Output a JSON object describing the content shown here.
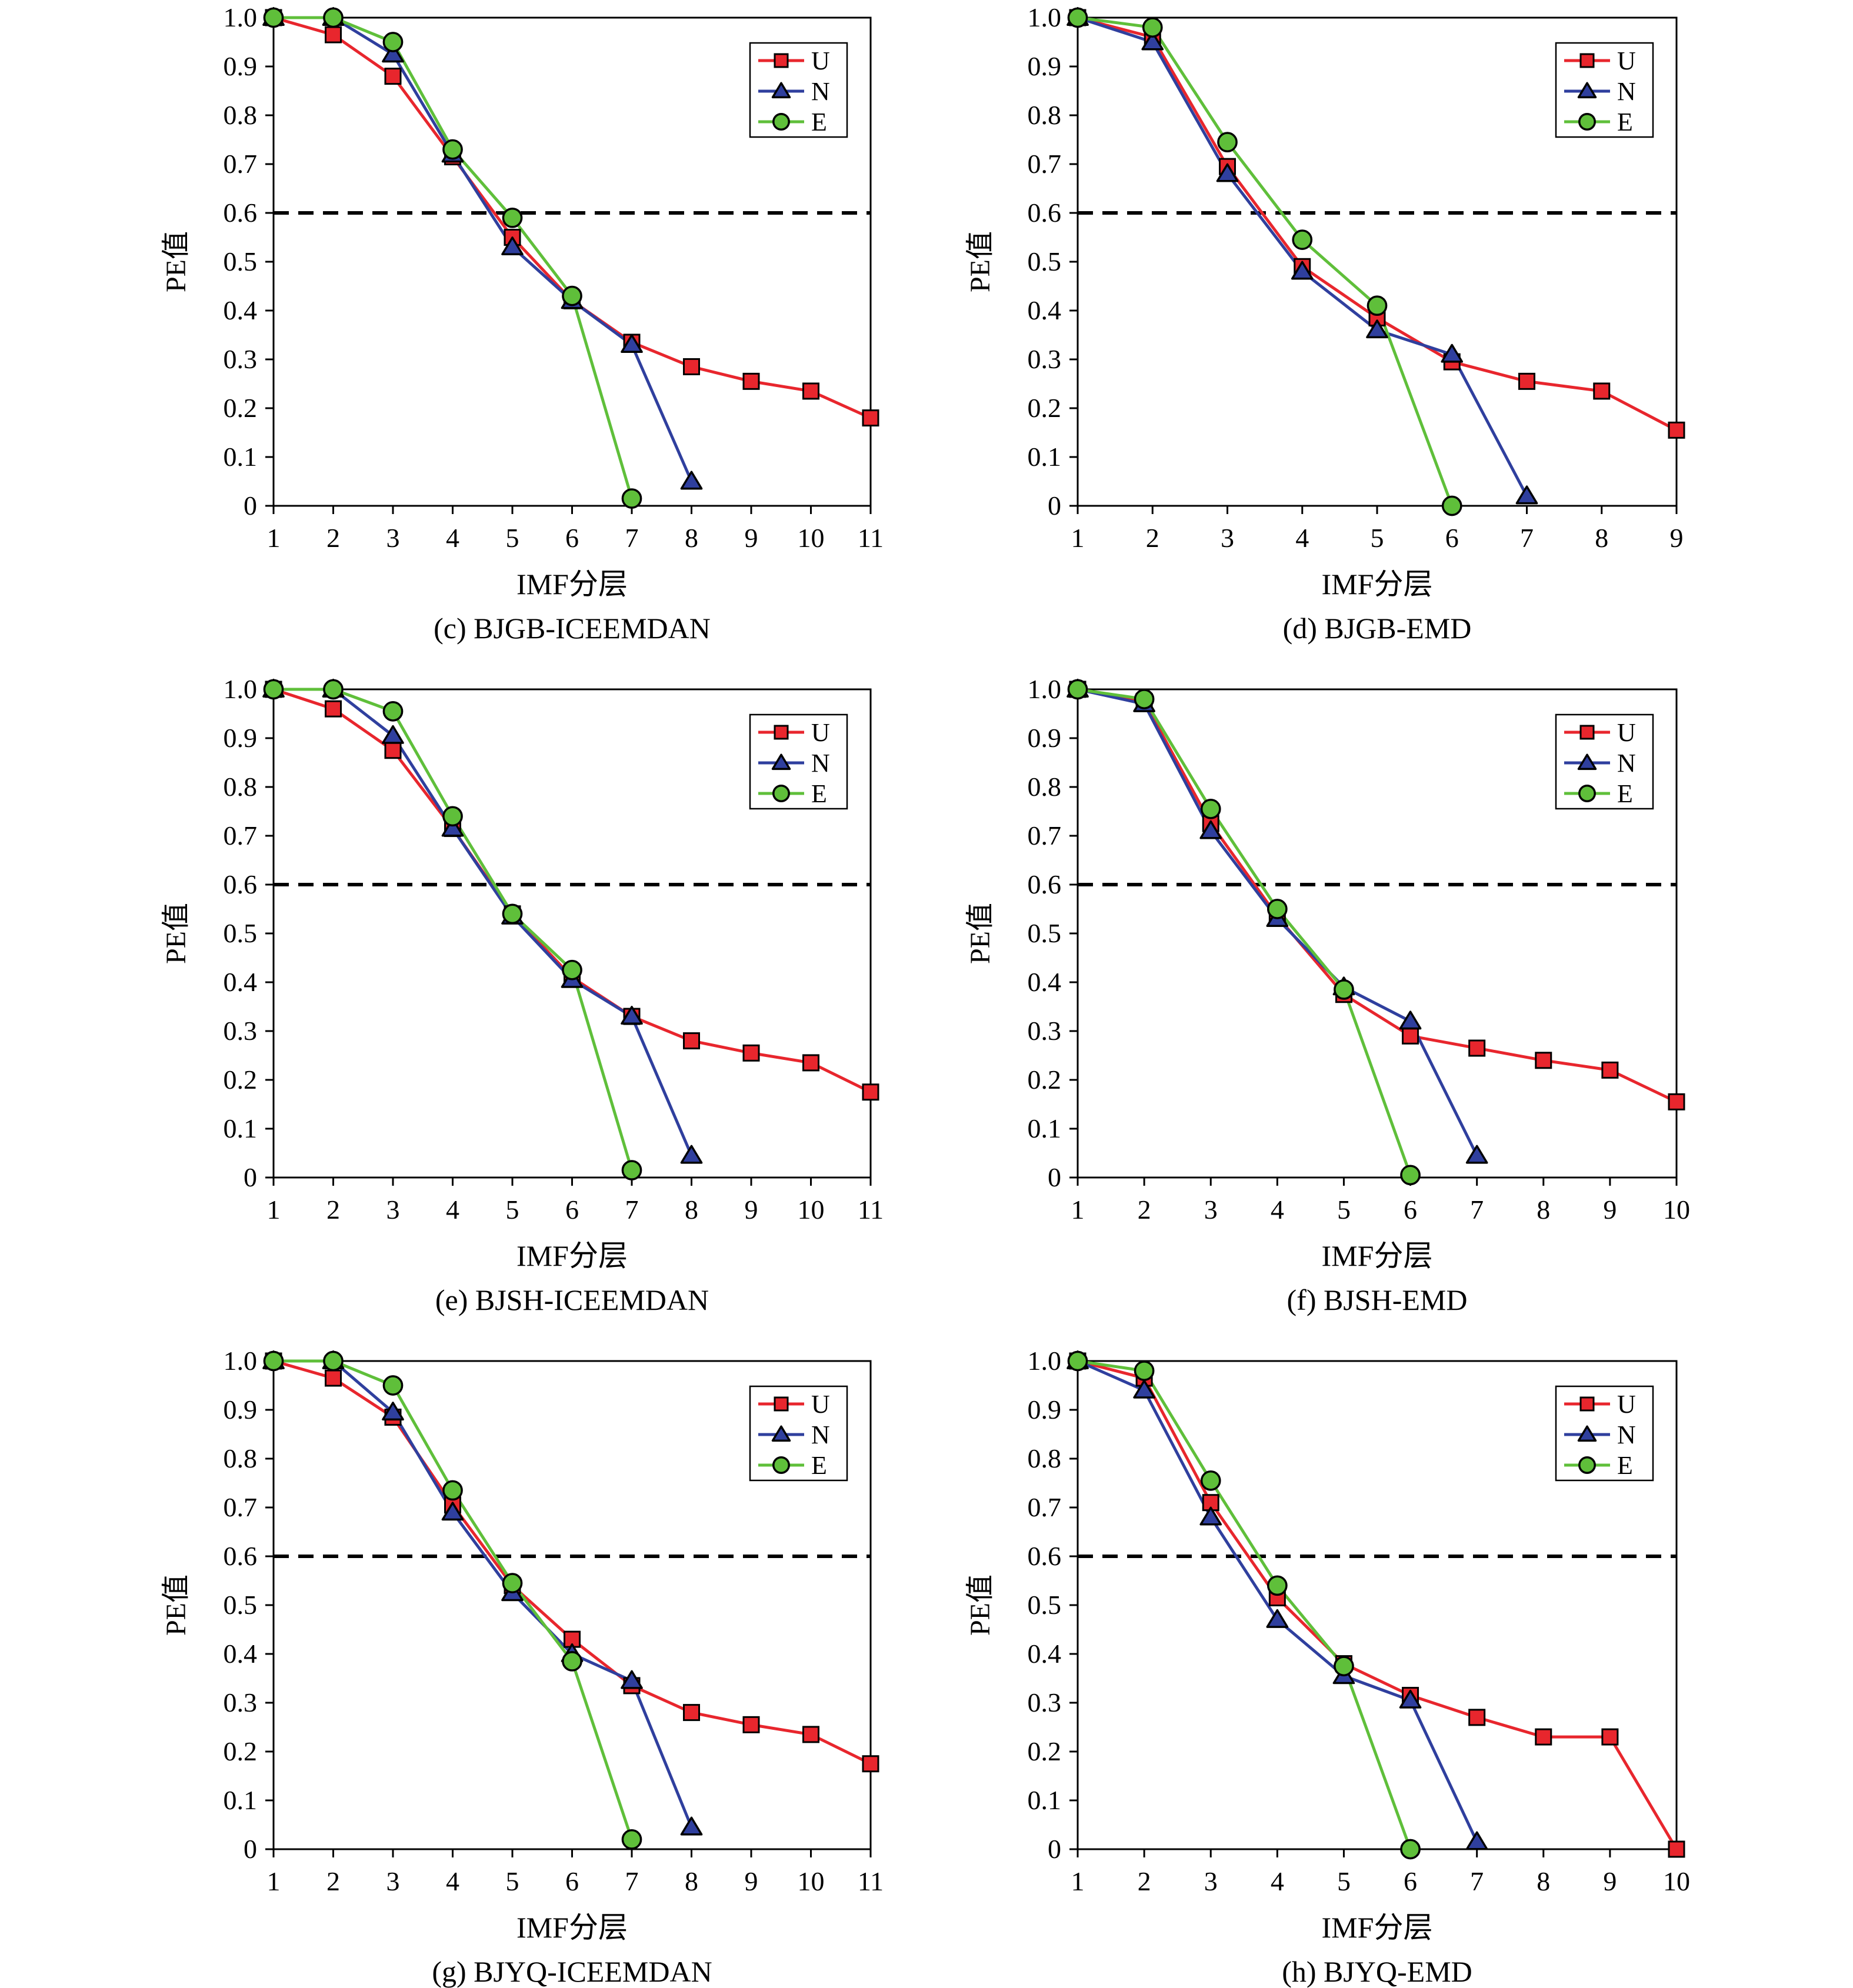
{
  "chart_data": [
    {
      "type": "line",
      "caption": "(c) BJGB-ICEEMDAN",
      "xlabel": "IMF分层",
      "ylabel": "PE值",
      "x_ticks": [
        "1",
        "2",
        "3",
        "4",
        "5",
        "6",
        "7",
        "8",
        "9",
        "10",
        "11"
      ],
      "y_ticks": [
        "0",
        "0.1",
        "0.2",
        "0.3",
        "0.4",
        "0.5",
        "0.6",
        "0.7",
        "0.8",
        "0.9",
        "1.0"
      ],
      "xlim": [
        1,
        11
      ],
      "ylim": [
        0,
        1
      ],
      "threshold": 0.6,
      "grid": false,
      "legend_position": "top-right",
      "series": [
        {
          "name": "U",
          "color": "#e8262d",
          "marker": "square",
          "points": [
            [
              1,
              1.0
            ],
            [
              2,
              0.965
            ],
            [
              3,
              0.88
            ],
            [
              4,
              0.715
            ],
            [
              5,
              0.55
            ],
            [
              6,
              0.42
            ],
            [
              7,
              0.335
            ],
            [
              8,
              0.285
            ],
            [
              9,
              0.255
            ],
            [
              10,
              0.235
            ],
            [
              11,
              0.18
            ]
          ]
        },
        {
          "name": "N",
          "color": "#2f3f9e",
          "marker": "triangle",
          "points": [
            [
              1,
              1.0
            ],
            [
              2,
              1.0
            ],
            [
              3,
              0.925
            ],
            [
              4,
              0.72
            ],
            [
              5,
              0.53
            ],
            [
              6,
              0.42
            ],
            [
              7,
              0.33
            ],
            [
              8,
              0.05
            ]
          ]
        },
        {
          "name": "E",
          "color": "#5fbf3a",
          "marker": "circle",
          "points": [
            [
              1,
              1.0
            ],
            [
              2,
              1.0
            ],
            [
              3,
              0.95
            ],
            [
              4,
              0.73
            ],
            [
              5,
              0.59
            ],
            [
              6,
              0.43
            ],
            [
              7,
              0.015
            ]
          ]
        }
      ]
    },
    {
      "type": "line",
      "caption": "(d) BJGB-EMD",
      "xlabel": "IMF分层",
      "ylabel": "PE值",
      "x_ticks": [
        "1",
        "2",
        "3",
        "4",
        "5",
        "6",
        "7",
        "8",
        "9"
      ],
      "y_ticks": [
        "0",
        "0.1",
        "0.2",
        "0.3",
        "0.4",
        "0.5",
        "0.6",
        "0.7",
        "0.8",
        "0.9",
        "1.0"
      ],
      "xlim": [
        1,
        9
      ],
      "ylim": [
        0,
        1
      ],
      "threshold": 0.6,
      "grid": false,
      "legend_position": "top-right",
      "series": [
        {
          "name": "U",
          "color": "#e8262d",
          "marker": "square",
          "points": [
            [
              1,
              1.0
            ],
            [
              2,
              0.96
            ],
            [
              3,
              0.695
            ],
            [
              4,
              0.49
            ],
            [
              5,
              0.385
            ],
            [
              6,
              0.295
            ],
            [
              7,
              0.255
            ],
            [
              8,
              0.235
            ],
            [
              9,
              0.155
            ]
          ]
        },
        {
          "name": "N",
          "color": "#2f3f9e",
          "marker": "triangle",
          "points": [
            [
              1,
              1.0
            ],
            [
              2,
              0.95
            ],
            [
              3,
              0.68
            ],
            [
              4,
              0.48
            ],
            [
              5,
              0.36
            ],
            [
              6,
              0.31
            ],
            [
              7,
              0.02
            ]
          ]
        },
        {
          "name": "E",
          "color": "#5fbf3a",
          "marker": "circle",
          "points": [
            [
              1,
              1.0
            ],
            [
              2,
              0.98
            ],
            [
              3,
              0.745
            ],
            [
              4,
              0.545
            ],
            [
              5,
              0.41
            ],
            [
              6,
              0.0
            ]
          ]
        }
      ]
    },
    {
      "type": "line",
      "caption": "(e) BJSH-ICEEMDAN",
      "xlabel": "IMF分层",
      "ylabel": "PE值",
      "x_ticks": [
        "1",
        "2",
        "3",
        "4",
        "5",
        "6",
        "7",
        "8",
        "9",
        "10",
        "11"
      ],
      "y_ticks": [
        "0",
        "0.1",
        "0.2",
        "0.3",
        "0.4",
        "0.5",
        "0.6",
        "0.7",
        "0.8",
        "0.9",
        "1.0"
      ],
      "xlim": [
        1,
        11
      ],
      "ylim": [
        0,
        1
      ],
      "threshold": 0.6,
      "grid": false,
      "legend_position": "top-right",
      "series": [
        {
          "name": "U",
          "color": "#e8262d",
          "marker": "square",
          "points": [
            [
              1,
              1.0
            ],
            [
              2,
              0.96
            ],
            [
              3,
              0.875
            ],
            [
              4,
              0.715
            ],
            [
              5,
              0.54
            ],
            [
              6,
              0.41
            ],
            [
              7,
              0.33
            ],
            [
              8,
              0.28
            ],
            [
              9,
              0.255
            ],
            [
              10,
              0.235
            ],
            [
              11,
              0.175
            ]
          ]
        },
        {
          "name": "N",
          "color": "#2f3f9e",
          "marker": "triangle",
          "points": [
            [
              1,
              1.0
            ],
            [
              2,
              1.0
            ],
            [
              3,
              0.905
            ],
            [
              4,
              0.715
            ],
            [
              5,
              0.535
            ],
            [
              6,
              0.405
            ],
            [
              7,
              0.33
            ],
            [
              8,
              0.045
            ]
          ]
        },
        {
          "name": "E",
          "color": "#5fbf3a",
          "marker": "circle",
          "points": [
            [
              1,
              1.0
            ],
            [
              2,
              1.0
            ],
            [
              3,
              0.955
            ],
            [
              4,
              0.74
            ],
            [
              5,
              0.54
            ],
            [
              6,
              0.425
            ],
            [
              7,
              0.015
            ]
          ]
        }
      ]
    },
    {
      "type": "line",
      "caption": "(f) BJSH-EMD",
      "xlabel": "IMF分层",
      "ylabel": "PE值",
      "x_ticks": [
        "1",
        "2",
        "3",
        "4",
        "5",
        "6",
        "7",
        "8",
        "9",
        "10"
      ],
      "y_ticks": [
        "0",
        "0.1",
        "0.2",
        "0.3",
        "0.4",
        "0.5",
        "0.6",
        "0.7",
        "0.8",
        "0.9",
        "1.0"
      ],
      "xlim": [
        1,
        10
      ],
      "ylim": [
        0,
        1
      ],
      "threshold": 0.6,
      "grid": false,
      "legend_position": "top-right",
      "series": [
        {
          "name": "U",
          "color": "#e8262d",
          "marker": "square",
          "points": [
            [
              1,
              1.0
            ],
            [
              2,
              0.975
            ],
            [
              3,
              0.725
            ],
            [
              4,
              0.535
            ],
            [
              5,
              0.375
            ],
            [
              6,
              0.29
            ],
            [
              7,
              0.265
            ],
            [
              8,
              0.24
            ],
            [
              9,
              0.22
            ],
            [
              10,
              0.155
            ]
          ]
        },
        {
          "name": "N",
          "color": "#2f3f9e",
          "marker": "triangle",
          "points": [
            [
              1,
              1.0
            ],
            [
              2,
              0.97
            ],
            [
              3,
              0.71
            ],
            [
              4,
              0.53
            ],
            [
              5,
              0.39
            ],
            [
              6,
              0.32
            ],
            [
              7,
              0.045
            ]
          ]
        },
        {
          "name": "E",
          "color": "#5fbf3a",
          "marker": "circle",
          "points": [
            [
              1,
              1.0
            ],
            [
              2,
              0.98
            ],
            [
              3,
              0.755
            ],
            [
              4,
              0.55
            ],
            [
              5,
              0.385
            ],
            [
              6,
              0.005
            ]
          ]
        }
      ]
    },
    {
      "type": "line",
      "caption": "(g) BJYQ-ICEEMDAN",
      "xlabel": "IMF分层",
      "ylabel": "PE值",
      "x_ticks": [
        "1",
        "2",
        "3",
        "4",
        "5",
        "6",
        "7",
        "8",
        "9",
        "10",
        "11"
      ],
      "y_ticks": [
        "0",
        "0.1",
        "0.2",
        "0.3",
        "0.4",
        "0.5",
        "0.6",
        "0.7",
        "0.8",
        "0.9",
        "1.0"
      ],
      "xlim": [
        1,
        11
      ],
      "ylim": [
        0,
        1
      ],
      "threshold": 0.6,
      "grid": false,
      "legend_position": "top-right",
      "series": [
        {
          "name": "U",
          "color": "#e8262d",
          "marker": "square",
          "points": [
            [
              1,
              1.0
            ],
            [
              2,
              0.965
            ],
            [
              3,
              0.885
            ],
            [
              4,
              0.705
            ],
            [
              5,
              0.54
            ],
            [
              6,
              0.43
            ],
            [
              7,
              0.335
            ],
            [
              8,
              0.28
            ],
            [
              9,
              0.255
            ],
            [
              10,
              0.235
            ],
            [
              11,
              0.175
            ]
          ]
        },
        {
          "name": "N",
          "color": "#2f3f9e",
          "marker": "triangle",
          "points": [
            [
              1,
              1.0
            ],
            [
              2,
              1.0
            ],
            [
              3,
              0.895
            ],
            [
              4,
              0.69
            ],
            [
              5,
              0.525
            ],
            [
              6,
              0.4
            ],
            [
              7,
              0.345
            ],
            [
              8,
              0.045
            ]
          ]
        },
        {
          "name": "E",
          "color": "#5fbf3a",
          "marker": "circle",
          "points": [
            [
              1,
              1.0
            ],
            [
              2,
              1.0
            ],
            [
              3,
              0.95
            ],
            [
              4,
              0.735
            ],
            [
              5,
              0.545
            ],
            [
              6,
              0.385
            ],
            [
              7,
              0.02
            ]
          ]
        }
      ]
    },
    {
      "type": "line",
      "caption": "(h) BJYQ-EMD",
      "xlabel": "IMF分层",
      "ylabel": "PE值",
      "x_ticks": [
        "1",
        "2",
        "3",
        "4",
        "5",
        "6",
        "7",
        "8",
        "9",
        "10"
      ],
      "y_ticks": [
        "0",
        "0.1",
        "0.2",
        "0.3",
        "0.4",
        "0.5",
        "0.6",
        "0.7",
        "0.8",
        "0.9",
        "1.0"
      ],
      "xlim": [
        1,
        10
      ],
      "ylim": [
        0,
        1
      ],
      "threshold": 0.6,
      "grid": false,
      "legend_position": "top-right",
      "series": [
        {
          "name": "U",
          "color": "#e8262d",
          "marker": "square",
          "points": [
            [
              1,
              1.0
            ],
            [
              2,
              0.965
            ],
            [
              3,
              0.71
            ],
            [
              4,
              0.515
            ],
            [
              5,
              0.38
            ],
            [
              6,
              0.315
            ],
            [
              7,
              0.27
            ],
            [
              8,
              0.23
            ],
            [
              9,
              0.23
            ],
            [
              10,
              0.0
            ]
          ]
        },
        {
          "name": "N",
          "color": "#2f3f9e",
          "marker": "triangle",
          "points": [
            [
              1,
              1.0
            ],
            [
              2,
              0.94
            ],
            [
              3,
              0.68
            ],
            [
              4,
              0.47
            ],
            [
              5,
              0.355
            ],
            [
              6,
              0.305
            ],
            [
              7,
              0.015
            ]
          ]
        },
        {
          "name": "E",
          "color": "#5fbf3a",
          "marker": "circle",
          "points": [
            [
              1,
              1.0
            ],
            [
              2,
              0.98
            ],
            [
              3,
              0.755
            ],
            [
              4,
              0.54
            ],
            [
              5,
              0.375
            ],
            [
              6,
              0.0
            ]
          ]
        }
      ]
    }
  ]
}
